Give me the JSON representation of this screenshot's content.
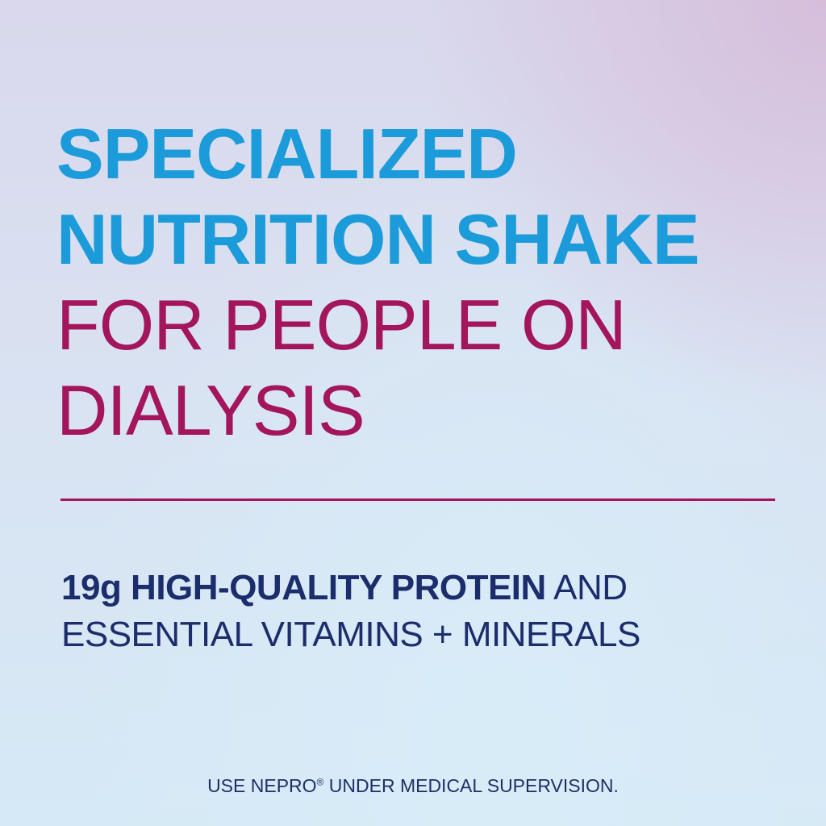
{
  "headline": {
    "line1": "SPECIALIZED",
    "line2": "NUTRITION SHAKE",
    "line3": "FOR PEOPLE ON",
    "line4": "DIALYSIS"
  },
  "subheadline": {
    "bold": "19g HIGH-QUALITY PROTEIN",
    "regular1": " AND",
    "line2": "ESSENTIAL VITAMINS + MINERALS"
  },
  "footer": {
    "before": "USE NEPRO",
    "mark": "®",
    "after": " UNDER MEDICAL SUPERVISION."
  },
  "colors": {
    "blue": "#1b9bd9",
    "magenta": "#a3155c",
    "navy": "#1b2d6b"
  }
}
